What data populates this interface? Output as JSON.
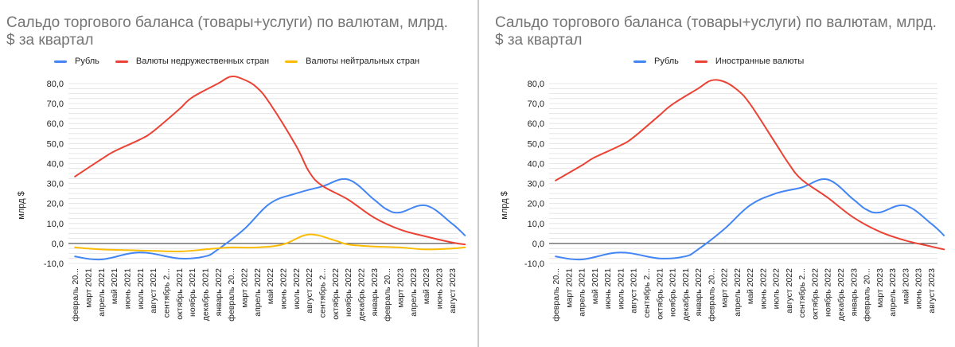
{
  "charts": [
    {
      "title": "Сальдо торгового баланса (товары+услуги) по валютам, млрд. $ за квартал",
      "legend": [
        {
          "name": "Рубль",
          "color": "#4285f4"
        },
        {
          "name": "Валюты недружественных стран",
          "color": "#ea4335"
        },
        {
          "name": "Валюты нейтральных стран",
          "color": "#fbbc04"
        }
      ]
    },
    {
      "title": "Сальдо торгового баланса (товары+услуги) по валютам, млрд. $ за квартал",
      "legend": [
        {
          "name": "Рубль",
          "color": "#4285f4"
        },
        {
          "name": "Иностранные валюты",
          "color": "#ea4335"
        }
      ]
    }
  ],
  "chart_data": [
    {
      "type": "line",
      "title": "Сальдо торгового баланса (товары+услуги) по валютам, млрд. $ за квартал",
      "ylabel": "млрд $",
      "xlabel": "",
      "ylim": [
        -10,
        80
      ],
      "yticks": [
        "-10,0",
        "0,0",
        "10,0",
        "20,0",
        "30,0",
        "40,0",
        "50,0",
        "60,0",
        "70,0",
        "80,0"
      ],
      "grid": true,
      "legend_position": "top",
      "categories": [
        "февраль 20...",
        "март 2021",
        "апрель 2021",
        "май 2021",
        "июнь 2021",
        "июль 2021",
        "август 2021",
        "сентябрь 2...",
        "октябрь 2021",
        "ноябрь 2021",
        "декабрь 2021",
        "январь 2022",
        "февраль 20...",
        "март 2022",
        "апрель 2022",
        "май 2022",
        "июнь 2022",
        "июль 2022",
        "август 2022",
        "сентябрь 2...",
        "октябрь 2022",
        "ноябрь 2022",
        "декабрь 2022",
        "январь 2023",
        "февраль 20...",
        "март 2023",
        "апрель 2023",
        "май 2023",
        "июнь 2023",
        "август 2023"
      ],
      "series": [
        {
          "name": "Рубль",
          "color": "#4285f4",
          "points": [
            [
              1,
              -6.5
            ],
            [
              3,
              -8
            ],
            [
              6,
              -4.5
            ],
            [
              9,
              -7.5
            ],
            [
              11,
              -6.5
            ],
            [
              12,
              -3
            ],
            [
              14,
              7
            ],
            [
              16,
              20
            ],
            [
              18,
              25
            ],
            [
              20,
              28.5
            ],
            [
              22,
              32
            ],
            [
              24,
              22
            ],
            [
              25,
              17
            ],
            [
              26,
              15.5
            ],
            [
              28,
              19
            ],
            [
              30,
              10
            ],
            [
              31,
              4
            ]
          ]
        },
        {
          "name": "Валюты недружественных стран",
          "color": "#ea4335",
          "points": [
            [
              1,
              33.5
            ],
            [
              3,
              42
            ],
            [
              4,
              46
            ],
            [
              6,
              52
            ],
            [
              7,
              56
            ],
            [
              9,
              67
            ],
            [
              10,
              73
            ],
            [
              12,
              80
            ],
            [
              13,
              83.5
            ],
            [
              14,
              82
            ],
            [
              15,
              78
            ],
            [
              16,
              70
            ],
            [
              18,
              49
            ],
            [
              19,
              36
            ],
            [
              20,
              29
            ],
            [
              22,
              22
            ],
            [
              24,
              13
            ],
            [
              26,
              7
            ],
            [
              28,
              3.5
            ],
            [
              30,
              0.5
            ],
            [
              31,
              -0.5
            ]
          ]
        },
        {
          "name": "Валюты нейтральных стран",
          "color": "#fbbc04",
          "points": [
            [
              1,
              -2
            ],
            [
              3,
              -3
            ],
            [
              6,
              -3.5
            ],
            [
              9,
              -4
            ],
            [
              11,
              -3
            ],
            [
              13,
              -2
            ],
            [
              15,
              -2
            ],
            [
              17,
              -0.5
            ],
            [
              19,
              4.5
            ],
            [
              21,
              1.5
            ],
            [
              22,
              -0.5
            ],
            [
              24,
              -1.5
            ],
            [
              26,
              -2
            ],
            [
              28,
              -3
            ],
            [
              30,
              -2.5
            ],
            [
              31,
              -2
            ]
          ]
        }
      ]
    },
    {
      "type": "line",
      "title": "Сальдо торгового баланса (товары+услуги) по валютам, млрд. $ за квартал",
      "ylabel": "млрд $",
      "xlabel": "",
      "ylim": [
        -10,
        80
      ],
      "yticks": [
        "-10,0",
        "0,0",
        "10,0",
        "20,0",
        "30,0",
        "40,0",
        "50,0",
        "60,0",
        "70,0",
        "80,0"
      ],
      "grid": true,
      "legend_position": "top",
      "categories": [
        "февраль 20...",
        "март 2021",
        "апрель 2021",
        "май 2021",
        "июнь 2021",
        "июль 2021",
        "август 2021",
        "сентябрь 2...",
        "октябрь 2021",
        "ноябрь 2021",
        "декабрь 2021",
        "январь 2022",
        "февраль 20...",
        "март 2022",
        "апрель 2022",
        "май 2022",
        "июнь 2022",
        "июль 2022",
        "август 2022",
        "сентябрь 2...",
        "октябрь 2022",
        "ноябрь 2022",
        "декабрь 2022",
        "январь 2023",
        "февраль 20...",
        "март 2023",
        "апрель 2023",
        "май 2023",
        "июнь 2023",
        "август 2023"
      ],
      "series": [
        {
          "name": "Рубль",
          "color": "#4285f4",
          "points": [
            [
              1,
              -6.5
            ],
            [
              3,
              -8
            ],
            [
              6,
              -4.5
            ],
            [
              9,
              -7.5
            ],
            [
              11,
              -6.5
            ],
            [
              12,
              -3
            ],
            [
              14,
              7
            ],
            [
              16,
              19
            ],
            [
              18,
              25
            ],
            [
              20,
              28
            ],
            [
              22,
              32
            ],
            [
              24,
              22
            ],
            [
              25,
              17
            ],
            [
              26,
              15.5
            ],
            [
              28,
              19
            ],
            [
              30,
              10
            ],
            [
              31,
              4
            ]
          ]
        },
        {
          "name": "Иностранные валюты",
          "color": "#ea4335",
          "points": [
            [
              1,
              31.5
            ],
            [
              3,
              39
            ],
            [
              4,
              43
            ],
            [
              6,
              49
            ],
            [
              7,
              53
            ],
            [
              9,
              64
            ],
            [
              10,
              69.5
            ],
            [
              12,
              77.5
            ],
            [
              13,
              81.5
            ],
            [
              14,
              81
            ],
            [
              15,
              77
            ],
            [
              16,
              70
            ],
            [
              18,
              50
            ],
            [
              19,
              40
            ],
            [
              20,
              32
            ],
            [
              22,
              23
            ],
            [
              24,
              13
            ],
            [
              26,
              6
            ],
            [
              28,
              1.5
            ],
            [
              30,
              -1.5
            ],
            [
              31,
              -3
            ]
          ]
        }
      ]
    }
  ]
}
